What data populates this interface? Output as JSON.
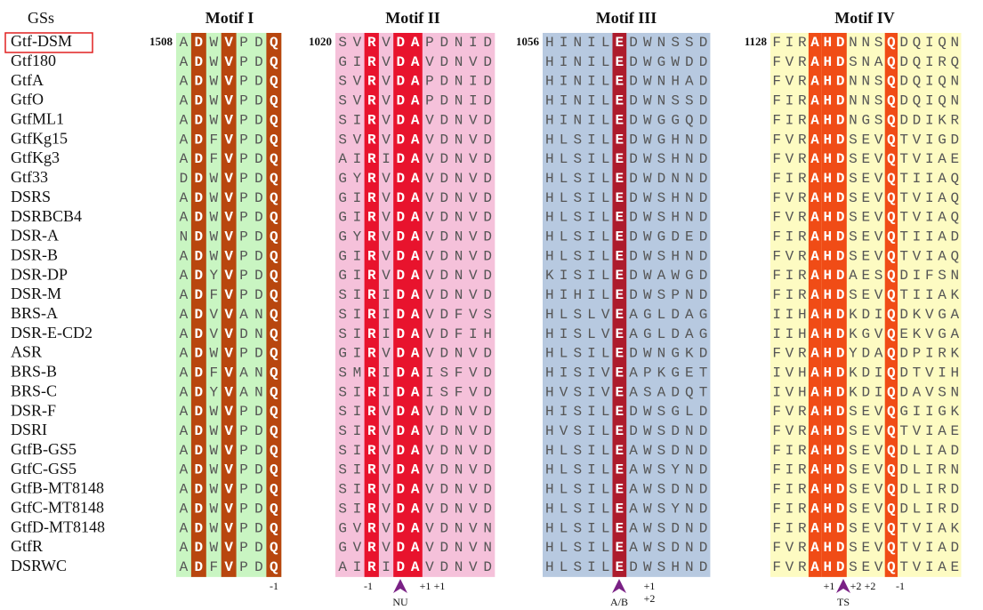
{
  "header": {
    "label": "GSs",
    "motifs": [
      "Motif I",
      "Motif II",
      "Motif III",
      "Motif IV"
    ]
  },
  "start_positions": [
    "1508",
    "1020",
    "1056",
    "1128"
  ],
  "rows": [
    {
      "name": "Gtf-DSM",
      "motifs": [
        "ADWVPDQ",
        "SVRVDAPDNID",
        "HINILEDWNSSD",
        "FIRAHDNNSQDQIQN"
      ]
    },
    {
      "name": "Gtf180",
      "motifs": [
        "ADWVPDQ",
        "GIRVDAVDNVD",
        "HINILEDWGWDD",
        "FVRAHDSNAQDQIRQ"
      ]
    },
    {
      "name": "GtfA",
      "motifs": [
        "ADWVPDQ",
        "SVRVDAPDNID",
        "HINILEDWNHAD",
        "FVRAHDNNSQDQIQN"
      ]
    },
    {
      "name": "GtfO",
      "motifs": [
        "ADWVPDQ",
        "SVRVDAPDNID",
        "HINILEDWNSSD",
        "FIRAHDNNSQDQIQN"
      ]
    },
    {
      "name": "GtfML1",
      "motifs": [
        "ADWVPDQ",
        "SIRVDAVDNVD",
        "HINILEDWGGQD",
        "FIRAHDNGSQDDIKR"
      ]
    },
    {
      "name": "GtfKg15",
      "motifs": [
        "ADFVPDQ",
        "SVRVDAVDNVD",
        "HLSILEDWGHND",
        "FVRAHDSEVQTVIGD"
      ]
    },
    {
      "name": "GtfKg3",
      "motifs": [
        "ADFVPDQ",
        "AIRIDAVDNVD",
        "HLSILEDWSHND",
        "FVRAHDSEVQTVIAE"
      ]
    },
    {
      "name": "Gtf33",
      "motifs": [
        "DDWVPDQ",
        "GYRVDAVDNVD",
        "HLSILEDWDNND",
        "FIRAHDSEVQTIIAQ"
      ]
    },
    {
      "name": "DSRS",
      "motifs": [
        "ADWVPDQ",
        "GIRVDAVDNVD",
        "HLSILEDWSHND",
        "FVRAHDSEVQTVIAQ"
      ]
    },
    {
      "name": "DSRBCB4",
      "motifs": [
        "ADWVPDQ",
        "GIRVDAVDNVD",
        "HLSILEDWSHND",
        "FVRAHDSEVQTVIAQ"
      ]
    },
    {
      "name": "DSR-A",
      "motifs": [
        "NDWVPDQ",
        "GYRVDAVDNVD",
        "HLSILEDWGDED",
        "FIRAHDSEVQTIIAD"
      ]
    },
    {
      "name": "DSR-B",
      "motifs": [
        "ADWVPDQ",
        "GIRVDAVDNVD",
        "HLSILEDWSHND",
        "FVRAHDSEVQTVIAQ"
      ]
    },
    {
      "name": "DSR-DP",
      "motifs": [
        "ADYVPDQ",
        "GIRVDAVDNVD",
        "KISILEDWAWGD",
        "FIRAHDAESQDIFSN"
      ]
    },
    {
      "name": "DSR-M",
      "motifs": [
        "ADFVPDQ",
        "SIRIDAVDNVD",
        "HIHILEDWSPND",
        "FIRAHDSEVQTIIAK"
      ]
    },
    {
      "name": "BRS-A",
      "motifs": [
        "ADVVANQ",
        "SIRIDAVDFVS",
        "HLSLVEAGLDAG",
        "IIHAHDKDIQDKVGA"
      ]
    },
    {
      "name": "DSR-E-CD2",
      "motifs": [
        "ADVVDNQ",
        "SIRIDAVDFIH",
        "HISLVEAGLDAG",
        "IIHAHDKGVQEKVGA"
      ]
    },
    {
      "name": "ASR",
      "motifs": [
        "ADWVPDQ",
        "GIRVDAVDNVD",
        "HLSILEDWNGKD",
        "FVRAHDYDAQDPIRK"
      ]
    },
    {
      "name": "BRS-B",
      "motifs": [
        "ADFVANQ",
        "SMRIDAISFVD",
        "HISIVEAPKGET",
        "IVHAHDKDIQDTVIH"
      ]
    },
    {
      "name": "BRS-C",
      "motifs": [
        "ADYVANQ",
        "SIRIDAISFVD",
        "HVSIVEASADQT",
        "IVHAHDKDIQDAVSN"
      ]
    },
    {
      "name": "DSR-F",
      "motifs": [
        "ADWVPDQ",
        "SIRVDAVDNVD",
        "HISILEDWSGLD",
        "FVRAHDSEVQGIIGK"
      ]
    },
    {
      "name": "DSRI",
      "motifs": [
        "ADWVPDQ",
        "SIRVDAVDNVD",
        "HVSILEDWSDND",
        "FVRAHDSEVQTVIAE"
      ]
    },
    {
      "name": "GtfB-GS5",
      "motifs": [
        "ADWVPDQ",
        "SIRVDAVDNVD",
        "HLSILEAWSDND",
        "FIRAHDSEVQDLIAD"
      ]
    },
    {
      "name": "GtfC-GS5",
      "motifs": [
        "ADWVPDQ",
        "SIRVDAVDNVD",
        "HLSILEAWSYND",
        "FIRAHDSEVQDLIRN"
      ]
    },
    {
      "name": "GtfB-MT8148",
      "motifs": [
        "ADWVPDQ",
        "SIRVDAVDNVD",
        "HLSILEAWSDND",
        "FIRAHDSEVQDLIRD"
      ]
    },
    {
      "name": "GtfC-MT8148",
      "motifs": [
        "ADWVPDQ",
        "SIRVDAVDNVD",
        "HLSILEAWSYND",
        "FIRAHDSEVQDLIRD"
      ]
    },
    {
      "name": "GtfD-MT8148",
      "motifs": [
        "ADWVPDQ",
        "GVRVDAVDNVN",
        "HLSILEAWSDND",
        "FIRAHDSEVQTVIAK"
      ]
    },
    {
      "name": "GtfR",
      "motifs": [
        "ADWVPDQ",
        "GVRVDAVDNVN",
        "HLSILEAWSDND",
        "FVRAHDSEVQTVIAD"
      ]
    },
    {
      "name": "DSRWC",
      "motifs": [
        "ADFVPDQ",
        "AIRIDAVDNVD",
        "HLSILEDWSHND",
        "FVRAHDSEVQTVIAE"
      ]
    }
  ],
  "annotations": [
    "-1",
    "-1",
    "NU",
    "+1",
    "+1",
    "A/B",
    "+1",
    "+2",
    "+1",
    "TS",
    "+2",
    "+2",
    "-1"
  ]
}
